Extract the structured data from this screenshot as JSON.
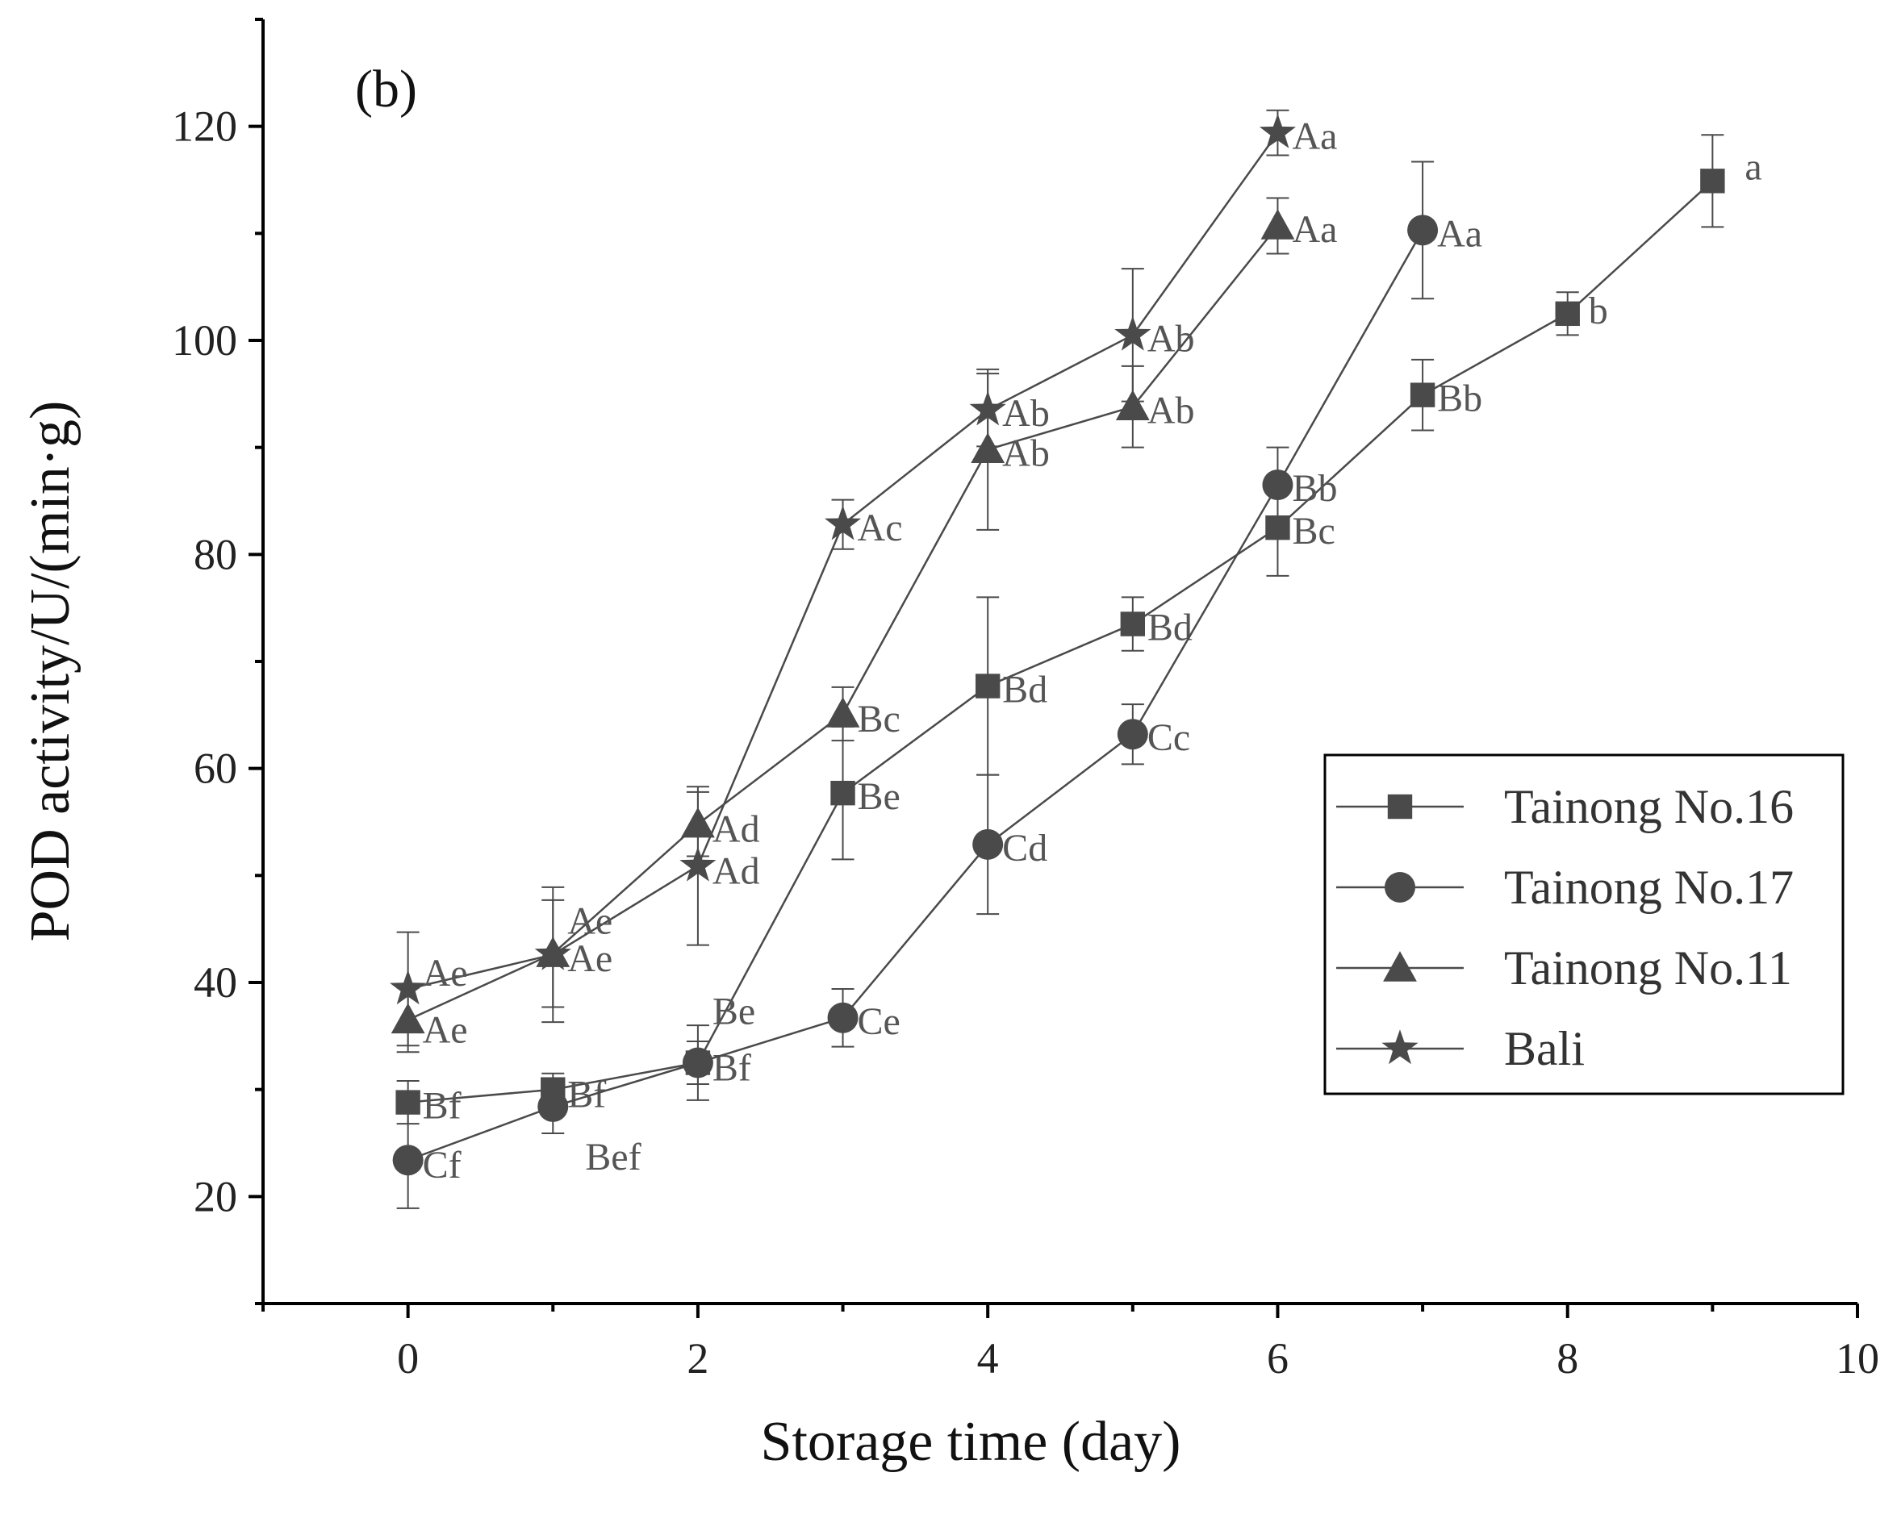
{
  "chart_data": {
    "type": "line",
    "panel_label": "(b)",
    "xlabel": "Storage time (day)",
    "ylabel": "POD activity/U/(min·g)",
    "xlim": [
      -1,
      10
    ],
    "ylim": [
      10,
      130
    ],
    "xticks": [
      0,
      2,
      4,
      6,
      8,
      10
    ],
    "yticks": [
      20,
      40,
      60,
      80,
      100,
      120
    ],
    "grid": false,
    "legend_position": "right-middle",
    "series": [
      {
        "name": "Tainong No.16",
        "marker": "square",
        "x": [
          0,
          1,
          2,
          3,
          4,
          5,
          6,
          7,
          8,
          9
        ],
        "y": [
          28.8,
          30.0,
          32.5,
          57.7,
          67.7,
          73.5,
          82.5,
          94.9,
          102.5,
          114.9
        ],
        "err": [
          2.0,
          1.5,
          2.0,
          6.2,
          8.3,
          2.5,
          4.5,
          3.3,
          2.0,
          4.3
        ],
        "labels": [
          "Bf",
          "Bf",
          "Bf",
          "Be",
          "Bd",
          "Bd",
          "Bc",
          "Bb",
          "b",
          "a"
        ]
      },
      {
        "name": "Tainong No.17",
        "marker": "circle",
        "x": [
          0,
          1,
          2,
          3,
          4,
          5,
          6,
          7
        ],
        "y": [
          23.4,
          28.4,
          32.5,
          36.7,
          52.9,
          63.2,
          86.5,
          110.3
        ],
        "err": [
          4.5,
          2.5,
          3.5,
          2.7,
          6.5,
          2.8,
          3.5,
          6.4
        ],
        "labels": [
          "Cf",
          "Bef",
          "Be",
          "Ce",
          "Cd",
          "Cc",
          "Bb",
          "Aa"
        ]
      },
      {
        "name": "Tainong No.11",
        "marker": "triangle",
        "x": [
          0,
          1,
          2,
          3,
          4,
          5,
          6
        ],
        "y": [
          36.5,
          42.7,
          54.8,
          65.1,
          89.8,
          93.8,
          110.7
        ],
        "err": [
          3.0,
          5.0,
          3.0,
          2.5,
          7.5,
          3.8,
          2.6
        ],
        "labels": [
          "Ae",
          "Ae",
          "Ad",
          "Bc",
          "Ab",
          "Ab",
          "Aa"
        ]
      },
      {
        "name": "Bali",
        "marker": "star",
        "x": [
          0,
          1,
          2,
          3,
          4,
          5,
          6
        ],
        "y": [
          39.4,
          42.6,
          50.9,
          82.8,
          93.5,
          100.5,
          119.4
        ],
        "err": [
          5.3,
          6.3,
          7.4,
          2.3,
          3.4,
          6.2,
          2.1
        ],
        "labels": [
          "Ae",
          "Ae",
          "Ad",
          "Ac",
          "Ab",
          "Ab",
          "Aa"
        ]
      }
    ]
  }
}
